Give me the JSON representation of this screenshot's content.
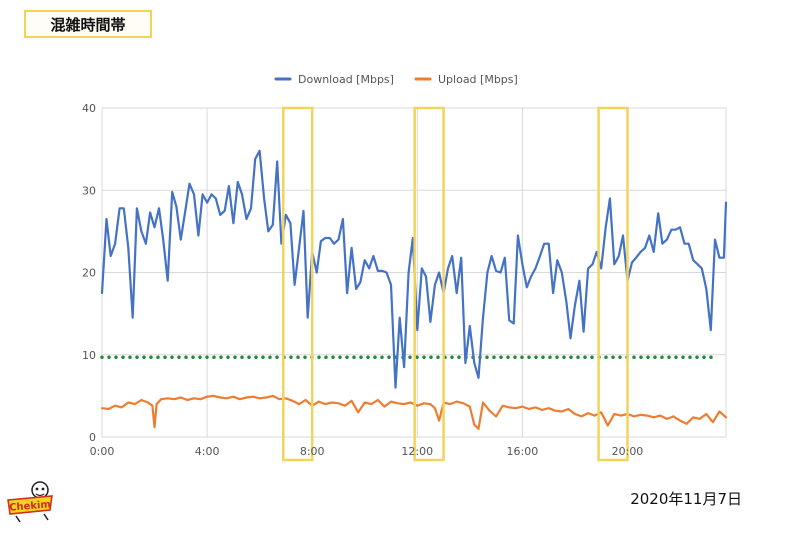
{
  "header": {
    "title": "混雑時間帯"
  },
  "footer": {
    "date": "2020年11月7日",
    "logo_text": "Chekim"
  },
  "colors": {
    "download": "#4472c4",
    "upload": "#ed7d31",
    "threshold": "#1f8a3c",
    "highlight": "#f2d45c",
    "grid": "#d9d9d9",
    "axis_text": "#555555"
  },
  "chart_data": {
    "type": "line",
    "title": "",
    "xlabel": "",
    "ylabel": "",
    "ylim": [
      0,
      40
    ],
    "yticks": [
      "0",
      "10",
      "20",
      "30",
      "40"
    ],
    "xlim": [
      0,
      23.75
    ],
    "xticks": [
      "0:00",
      "4:00",
      "8:00",
      "12:00",
      "16:00",
      "20:00"
    ],
    "legend_position": "top",
    "grid": true,
    "threshold": {
      "value": 9.7,
      "style": "dotted"
    },
    "highlights": [
      {
        "from": 6.9,
        "to": 8.0
      },
      {
        "from": 11.9,
        "to": 13.0
      },
      {
        "from": 18.9,
        "to": 20.0
      }
    ],
    "series": [
      {
        "name": "Download [Mbps]",
        "x": [
          0.0,
          0.17,
          0.33,
          0.5,
          0.67,
          0.83,
          1.0,
          1.17,
          1.33,
          1.5,
          1.67,
          1.83,
          2.0,
          2.17,
          2.33,
          2.5,
          2.67,
          2.83,
          3.0,
          3.17,
          3.33,
          3.5,
          3.67,
          3.83,
          4.0,
          4.17,
          4.33,
          4.5,
          4.67,
          4.83,
          5.0,
          5.17,
          5.33,
          5.5,
          5.67,
          5.83,
          6.0,
          6.17,
          6.33,
          6.5,
          6.67,
          6.83,
          7.0,
          7.17,
          7.33,
          7.5,
          7.67,
          7.83,
          8.0,
          8.17,
          8.33,
          8.5,
          8.67,
          8.83,
          9.0,
          9.17,
          9.33,
          9.5,
          9.67,
          9.83,
          10.0,
          10.17,
          10.33,
          10.5,
          10.67,
          10.83,
          11.0,
          11.17,
          11.33,
          11.5,
          11.67,
          11.83,
          12.0,
          12.17,
          12.33,
          12.5,
          12.67,
          12.83,
          13.0,
          13.17,
          13.33,
          13.5,
          13.67,
          13.83,
          14.0,
          14.17,
          14.33,
          14.5,
          14.67,
          14.83,
          15.0,
          15.17,
          15.33,
          15.5,
          15.67,
          15.83,
          16.0,
          16.17,
          16.33,
          16.5,
          16.67,
          16.83,
          17.0,
          17.17,
          17.33,
          17.5,
          17.67,
          17.83,
          18.0,
          18.17,
          18.33,
          18.5,
          18.67,
          18.83,
          19.0,
          19.17,
          19.33,
          19.5,
          19.67,
          19.83,
          20.0,
          20.17,
          20.33,
          20.5,
          20.67,
          20.83,
          21.0,
          21.17,
          21.33,
          21.5,
          21.67,
          21.83,
          22.0,
          22.17,
          22.33,
          22.5,
          22.67,
          22.83,
          23.0,
          23.17,
          23.33,
          23.5,
          23.67,
          23.75
        ],
        "values": [
          17.5,
          26.5,
          22.0,
          23.5,
          27.8,
          27.8,
          23.0,
          14.5,
          27.8,
          25.0,
          23.5,
          27.3,
          25.5,
          27.8,
          24.0,
          19.0,
          29.8,
          28.0,
          24.0,
          27.5,
          30.8,
          29.5,
          24.5,
          29.5,
          28.5,
          29.5,
          29.0,
          27.0,
          27.5,
          30.5,
          26.0,
          31.0,
          29.5,
          26.5,
          27.8,
          33.8,
          34.8,
          29.0,
          25.0,
          25.8,
          33.5,
          23.5,
          27.0,
          26.0,
          18.5,
          23.0,
          27.5,
          14.5,
          22.5,
          20.0,
          23.8,
          24.2,
          24.2,
          23.5,
          24.0,
          26.5,
          17.5,
          23.0,
          18.0,
          18.8,
          21.5,
          20.5,
          22.0,
          20.2,
          20.2,
          20.0,
          18.5,
          6.0,
          14.5,
          8.5,
          20.0,
          24.2,
          13.0,
          20.5,
          19.5,
          14.0,
          18.5,
          20.0,
          17.5,
          20.5,
          22.0,
          17.5,
          21.8,
          9.0,
          13.5,
          9.0,
          7.2,
          14.5,
          20.0,
          22.0,
          20.2,
          20.0,
          21.8,
          14.2,
          13.8,
          24.5,
          21.0,
          18.2,
          19.5,
          20.5,
          22.0,
          23.5,
          23.5,
          17.5,
          21.5,
          20.0,
          16.5,
          12.0,
          16.0,
          19.0,
          12.8,
          20.5,
          21.0,
          22.5,
          20.5,
          25.5,
          29.0,
          21.0,
          22.0,
          24.5,
          19.0,
          21.2,
          21.8,
          22.5,
          23.0,
          24.5,
          22.5,
          27.2,
          23.5,
          24.0,
          25.2,
          25.2,
          25.5,
          23.5,
          23.5,
          21.5,
          21.0,
          20.5,
          18.0,
          13.0,
          24.0,
          21.8,
          21.8,
          28.5
        ]
      },
      {
        "name": "Upload [Mbps]",
        "x": [
          0.0,
          0.25,
          0.5,
          0.75,
          1.0,
          1.25,
          1.5,
          1.75,
          1.92,
          2.0,
          2.08,
          2.25,
          2.5,
          2.75,
          3.0,
          3.25,
          3.5,
          3.75,
          4.0,
          4.25,
          4.5,
          4.75,
          5.0,
          5.25,
          5.5,
          5.75,
          6.0,
          6.25,
          6.5,
          6.75,
          7.0,
          7.25,
          7.5,
          7.75,
          8.0,
          8.25,
          8.5,
          8.75,
          9.0,
          9.25,
          9.5,
          9.75,
          10.0,
          10.25,
          10.5,
          10.75,
          11.0,
          11.25,
          11.5,
          11.75,
          12.0,
          12.25,
          12.5,
          12.67,
          12.83,
          13.0,
          13.25,
          13.5,
          13.75,
          14.0,
          14.17,
          14.33,
          14.5,
          14.75,
          15.0,
          15.25,
          15.5,
          15.75,
          16.0,
          16.25,
          16.5,
          16.75,
          17.0,
          17.25,
          17.5,
          17.75,
          18.0,
          18.25,
          18.5,
          18.75,
          19.0,
          19.25,
          19.5,
          19.75,
          20.0,
          20.25,
          20.5,
          20.75,
          21.0,
          21.25,
          21.5,
          21.75,
          22.0,
          22.25,
          22.5,
          22.75,
          23.0,
          23.25,
          23.5,
          23.75
        ],
        "values": [
          3.5,
          3.4,
          3.8,
          3.6,
          4.2,
          4.0,
          4.5,
          4.2,
          3.8,
          1.2,
          4.0,
          4.6,
          4.7,
          4.6,
          4.8,
          4.5,
          4.7,
          4.6,
          4.9,
          5.0,
          4.8,
          4.7,
          4.9,
          4.6,
          4.8,
          4.9,
          4.7,
          4.8,
          5.0,
          4.6,
          4.7,
          4.4,
          4.0,
          4.5,
          3.8,
          4.3,
          4.0,
          4.2,
          4.1,
          3.8,
          4.4,
          3.0,
          4.2,
          4.0,
          4.5,
          3.7,
          4.3,
          4.1,
          4.0,
          4.2,
          3.8,
          4.1,
          4.0,
          3.5,
          2.0,
          4.2,
          4.0,
          4.3,
          4.1,
          3.7,
          1.5,
          1.0,
          4.2,
          3.2,
          2.5,
          3.8,
          3.6,
          3.5,
          3.7,
          3.4,
          3.6,
          3.3,
          3.5,
          3.2,
          3.1,
          3.4,
          2.8,
          2.5,
          2.9,
          2.6,
          3.0,
          1.4,
          2.8,
          2.6,
          2.8,
          2.5,
          2.7,
          2.6,
          2.4,
          2.6,
          2.2,
          2.5,
          2.0,
          1.6,
          2.4,
          2.2,
          2.8,
          1.8,
          3.1,
          2.4
        ]
      }
    ]
  }
}
